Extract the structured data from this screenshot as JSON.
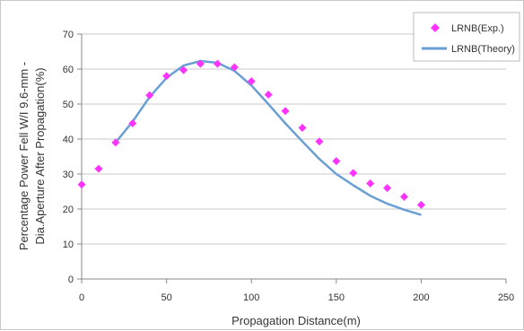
{
  "chart_data": {
    "type": "scatter",
    "title": "",
    "xlabel": "Propagation Distance(m)",
    "ylabel_lines": [
      "Percentage Power Fell W/I 9.6-mm -",
      "Dia.Aperture After Propagation(%)"
    ],
    "xlim": [
      0,
      250
    ],
    "ylim": [
      0,
      70
    ],
    "x_ticks": [
      0,
      50,
      100,
      150,
      200,
      250
    ],
    "y_ticks": [
      0,
      10,
      20,
      30,
      40,
      50,
      60,
      70
    ],
    "grid": "horizontal",
    "legend_position": "top-right",
    "series": [
      {
        "name": "LRNB(Exp.)",
        "kind": "markers",
        "marker": "diamond",
        "color": "#ff33ff",
        "x": [
          0,
          10,
          20,
          30,
          40,
          50,
          60,
          70,
          80,
          90,
          100,
          110,
          120,
          130,
          140,
          150,
          160,
          170,
          180,
          190,
          200
        ],
        "y": [
          27,
          31.5,
          39,
          44.5,
          52.5,
          58,
          59.7,
          61.5,
          61.5,
          60.5,
          56.5,
          52.7,
          48,
          43.2,
          39.3,
          33.7,
          30.3,
          27.3,
          26,
          23.5,
          21.2
        ]
      },
      {
        "name": "LRNB(Theory)",
        "kind": "line",
        "color": "#6a9fd4",
        "x": [
          20,
          30,
          40,
          50,
          60,
          70,
          80,
          90,
          100,
          110,
          120,
          130,
          140,
          150,
          160,
          170,
          180,
          190,
          200
        ],
        "y": [
          39,
          45,
          52,
          57.5,
          61,
          62.3,
          61.8,
          59.5,
          55.3,
          50,
          44.5,
          39.3,
          34.3,
          30,
          26.8,
          23.8,
          21.5,
          19.8,
          18.3
        ]
      }
    ]
  }
}
